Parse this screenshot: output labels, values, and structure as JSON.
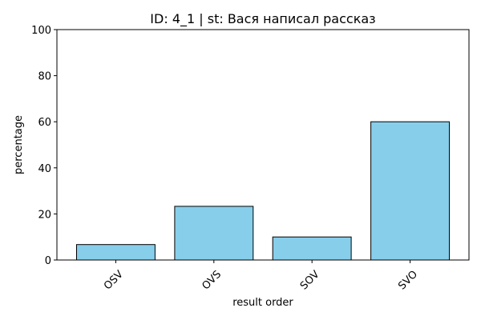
{
  "chart_data": {
    "type": "bar",
    "title": "ID: 4_1 | st: Вася написал рассказ",
    "xlabel": "result order",
    "ylabel": "percentage",
    "categories": [
      "OSV",
      "OVS",
      "SOV",
      "SVO"
    ],
    "values": [
      6.7,
      23.3,
      10.0,
      60.0
    ],
    "ylim": [
      0,
      100
    ],
    "yticks": [
      "0",
      "20",
      "40",
      "60",
      "80",
      "100"
    ],
    "grid": false,
    "legend": "none",
    "bar_color": "#87ceeb",
    "edge_color": "#000000"
  }
}
